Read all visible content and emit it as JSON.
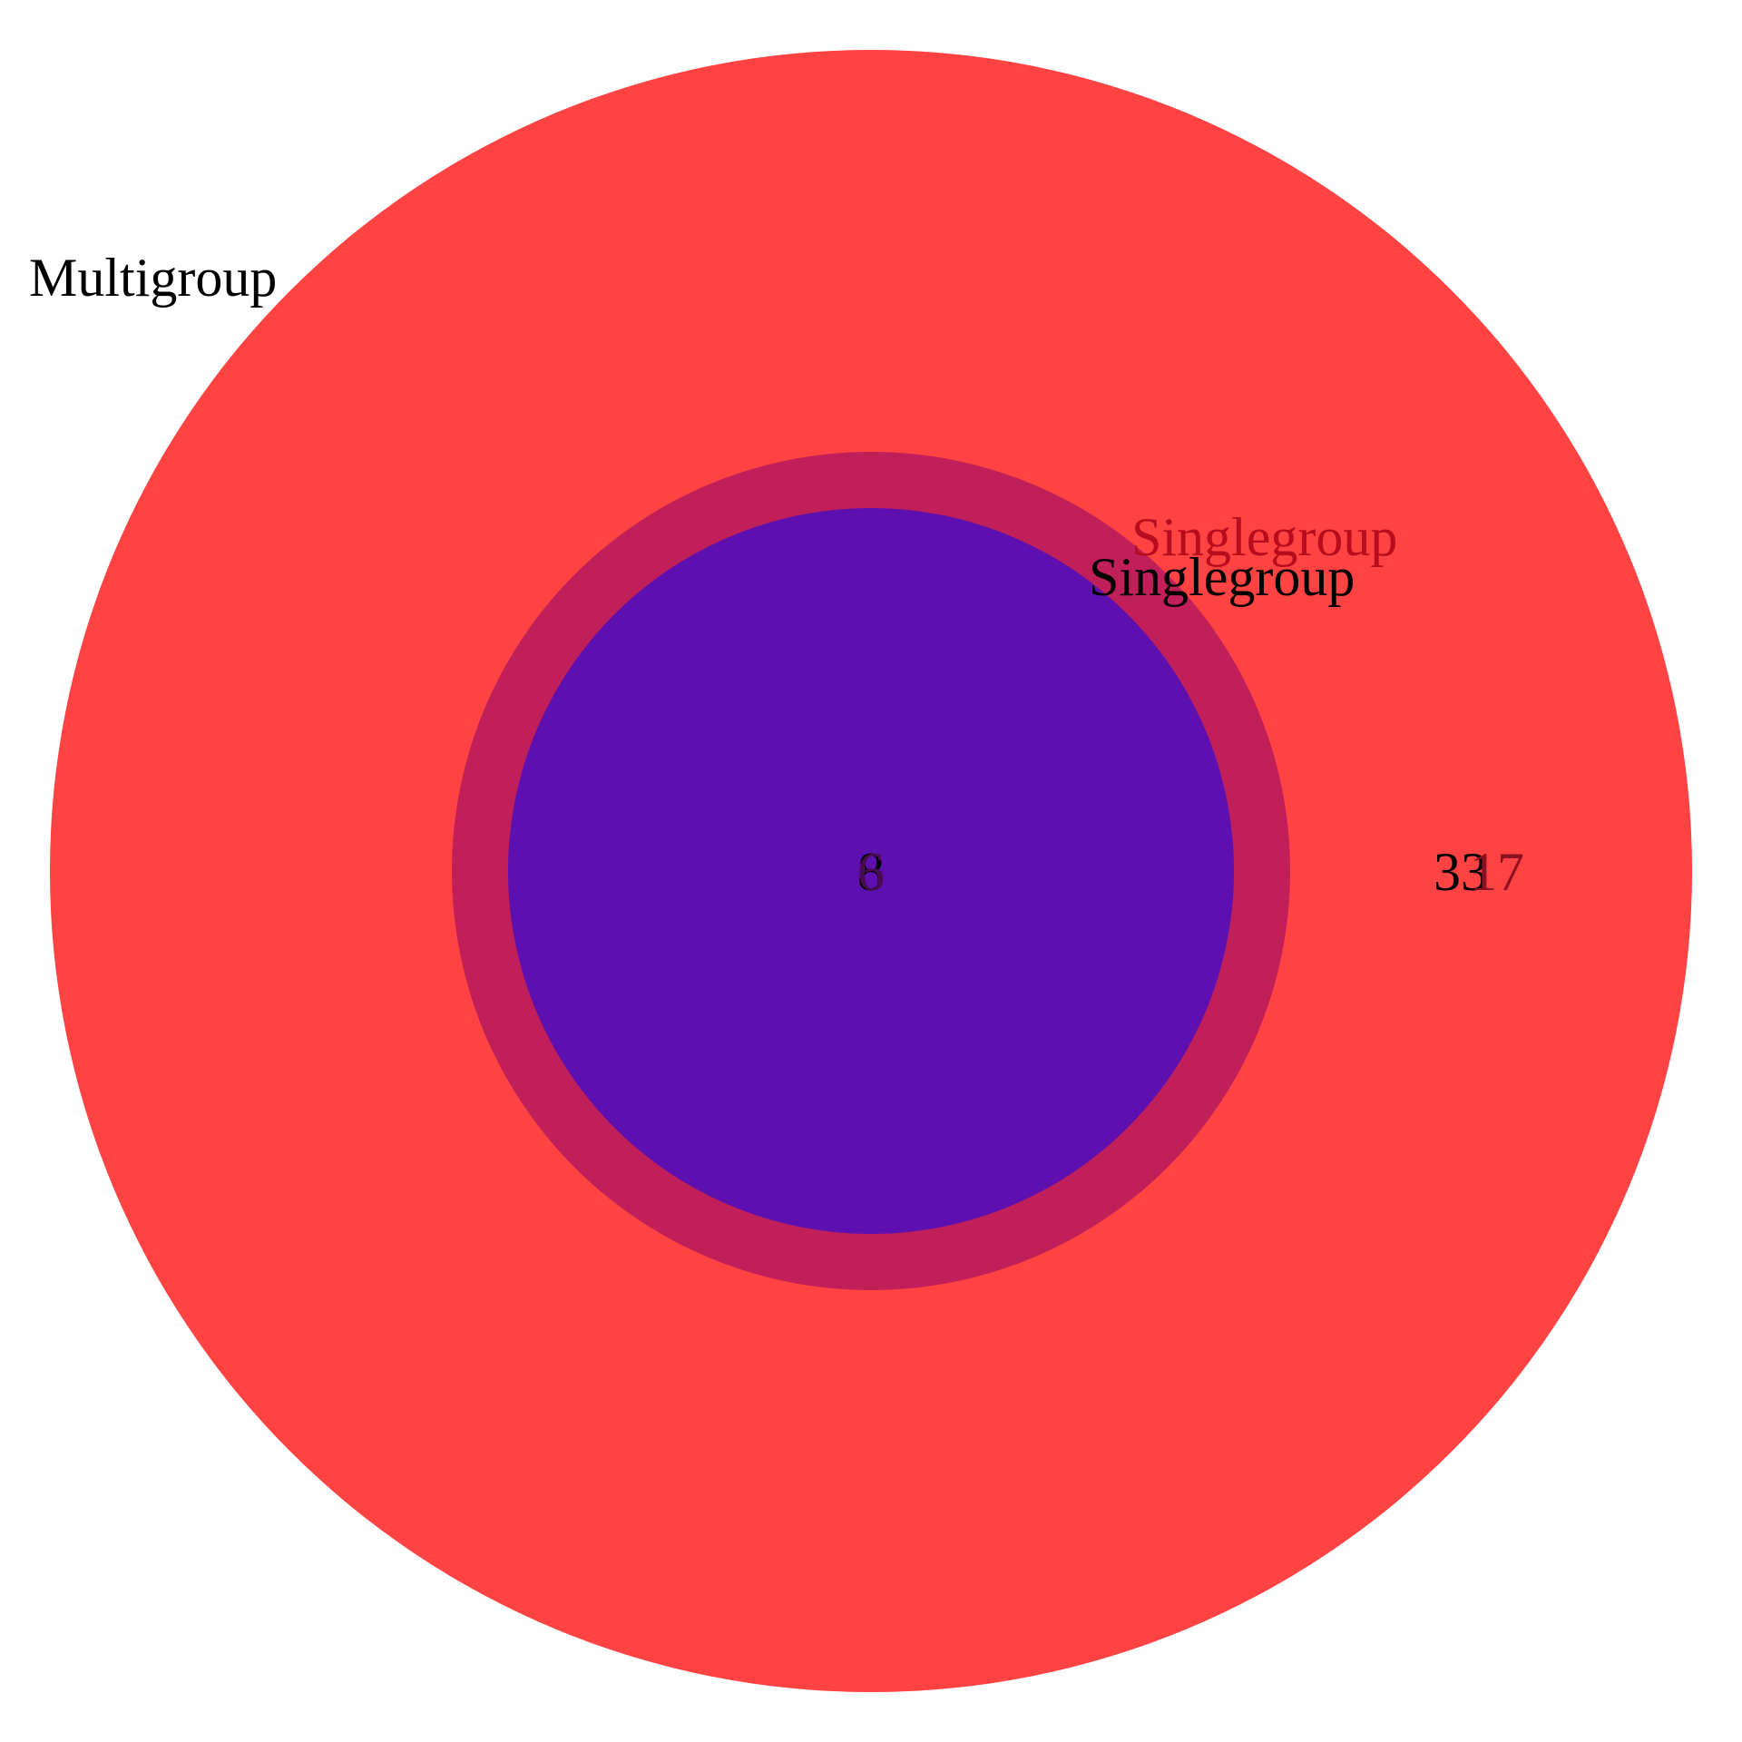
{
  "diagram": {
    "type": "venn",
    "sets": [
      {
        "name": "Multigroup",
        "label": "Multigroup",
        "fill": "#FF0000",
        "label_color": "#000000"
      },
      {
        "name": "Singlegroup",
        "label": "Singlegroup",
        "fill": "#7F0040",
        "label_color": "#B80D1E"
      },
      {
        "name": "Singlegroup",
        "label": "Singlegroup",
        "fill": "#4B0BBF",
        "label_color": "#000000"
      }
    ],
    "region_counts": {
      "multigroup_only_a": "33",
      "multigroup_only_b": "17",
      "center_a": "8",
      "center_b": "6"
    },
    "colors": {
      "outer_fill": "#FF4242",
      "middle_ring_fill": "#C11F5A",
      "inner_fill": "#5E0FAF",
      "dark_red_text": "#B80D1E",
      "black_text": "#000000"
    }
  }
}
